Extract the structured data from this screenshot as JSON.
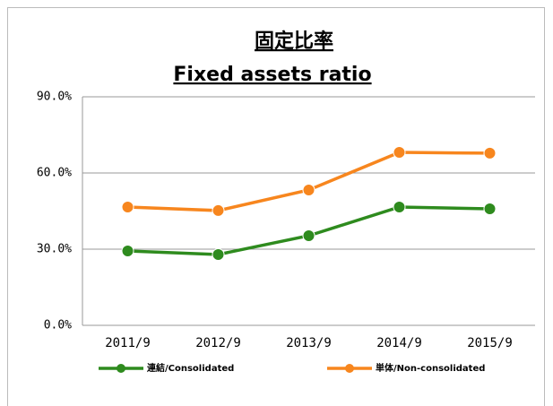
{
  "chart_data": {
    "type": "line",
    "title": "固定比率",
    "subtitle": "Fixed assets ratio",
    "categories": [
      "2011/9",
      "2012/9",
      "2013/9",
      "2014/9",
      "2015/9"
    ],
    "series": [
      {
        "name": "連結/Consolidated",
        "color": "#2e8b1e",
        "values": [
          29.3,
          27.9,
          35.3,
          46.6,
          45.9
        ]
      },
      {
        "name": "単体/Non-consolidated",
        "color": "#f7861e",
        "values": [
          46.6,
          45.2,
          53.3,
          68.1,
          67.8
        ]
      }
    ],
    "ylim": [
      0,
      90
    ],
    "yticks": [
      {
        "value": 0,
        "label": "0.0%"
      },
      {
        "value": 30,
        "label": "30.0%"
      },
      {
        "value": 60,
        "label": "60.0%"
      },
      {
        "value": 90,
        "label": "90.0%"
      }
    ],
    "grid": true,
    "legend": "bottom"
  }
}
